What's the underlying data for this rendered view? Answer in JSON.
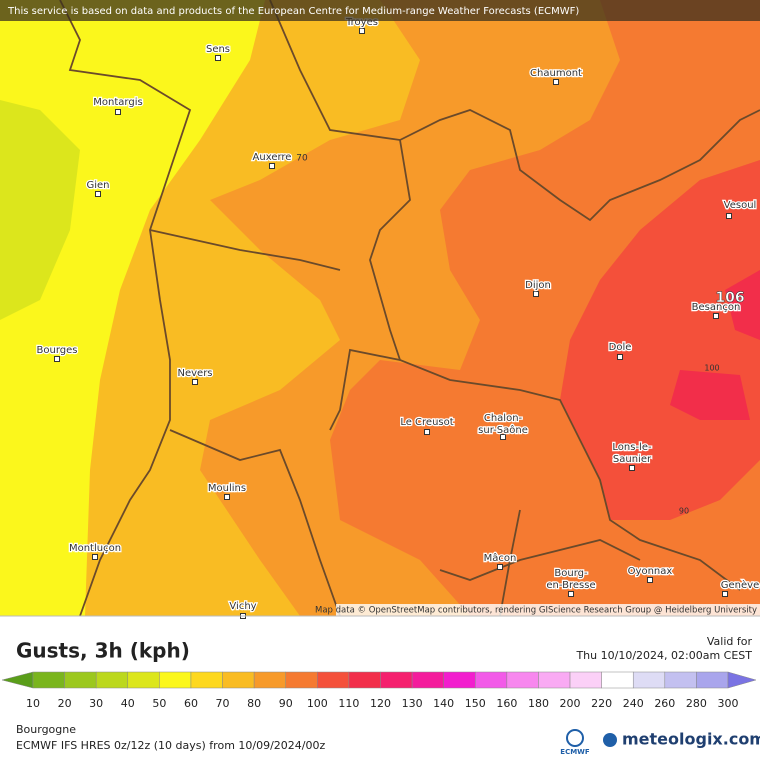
{
  "header": {
    "notice": "This service is based on data and products of the European Centre for Medium-range Weather Forecasts (ECMWF)"
  },
  "map": {
    "cities": [
      {
        "lines": [
          "Troyes"
        ]
      },
      {
        "lines": [
          "Sens"
        ]
      },
      {
        "lines": [
          "Chaumont"
        ]
      },
      {
        "lines": [
          "Montargis"
        ]
      },
      {
        "lines": [
          "Auxerre"
        ]
      },
      {
        "lines": [
          "Gien"
        ]
      },
      {
        "lines": [
          "Vesoul"
        ]
      },
      {
        "lines": [
          "Dijon"
        ]
      },
      {
        "lines": [
          "Besançon"
        ]
      },
      {
        "lines": [
          "Bourges"
        ]
      },
      {
        "lines": [
          "Nevers"
        ]
      },
      {
        "lines": [
          "Dole"
        ]
      },
      {
        "lines": [
          "Le Creusot"
        ]
      },
      {
        "lines": [
          "Chalon-",
          "sur-Saône"
        ]
      },
      {
        "lines": [
          "Lons-le-",
          "Saunier"
        ]
      },
      {
        "lines": [
          "Moulins"
        ]
      },
      {
        "lines": [
          "Montluçon"
        ]
      },
      {
        "lines": [
          "Mâcon"
        ]
      },
      {
        "lines": [
          "Bourg-",
          "en-Bresse"
        ]
      },
      {
        "lines": [
          "Oyonnax"
        ]
      },
      {
        "lines": [
          "Genève"
        ]
      },
      {
        "lines": [
          "Vichy"
        ]
      }
    ],
    "contour_labels": [
      "70",
      "106",
      "100",
      "90"
    ],
    "attribution": "Map data © OpenStreetMap contributors, rendering GIScience Research Group @ Heidelberg University"
  },
  "legend": {
    "title": "Gusts, 3h (kph)",
    "valid_label": "Valid for",
    "valid_time": "Thu 10/10/2024, 02:00am CEST",
    "labels": [
      10,
      20,
      30,
      40,
      50,
      60,
      70,
      80,
      90,
      100,
      110,
      120,
      130,
      140,
      150,
      160,
      180,
      200,
      220,
      240,
      260,
      280,
      300
    ],
    "colors": [
      "#5a9e1a",
      "#7ab51d",
      "#9cc81e",
      "#bcd81d",
      "#dce61c",
      "#fbf71c",
      "#fdd81e",
      "#f9bc23",
      "#f79a2a",
      "#f57a31",
      "#f4503a",
      "#f22e4a",
      "#f5206e",
      "#f41c9c",
      "#f21ece",
      "#f25ae8",
      "#f787ee",
      "#f9aaf3",
      "#fbd0f7",
      "#ffffff",
      "#dedcf5",
      "#c3c0f0",
      "#a9a5ec",
      "#8f8ae6",
      "#7a73e3"
    ]
  },
  "footer": {
    "region": "Bourgogne",
    "model": "ECMWF IFS HRES 0z/12z (10 days) from  10/09/2024/00z",
    "ecmwf": "ECMWF",
    "brand": "meteologix.com"
  }
}
